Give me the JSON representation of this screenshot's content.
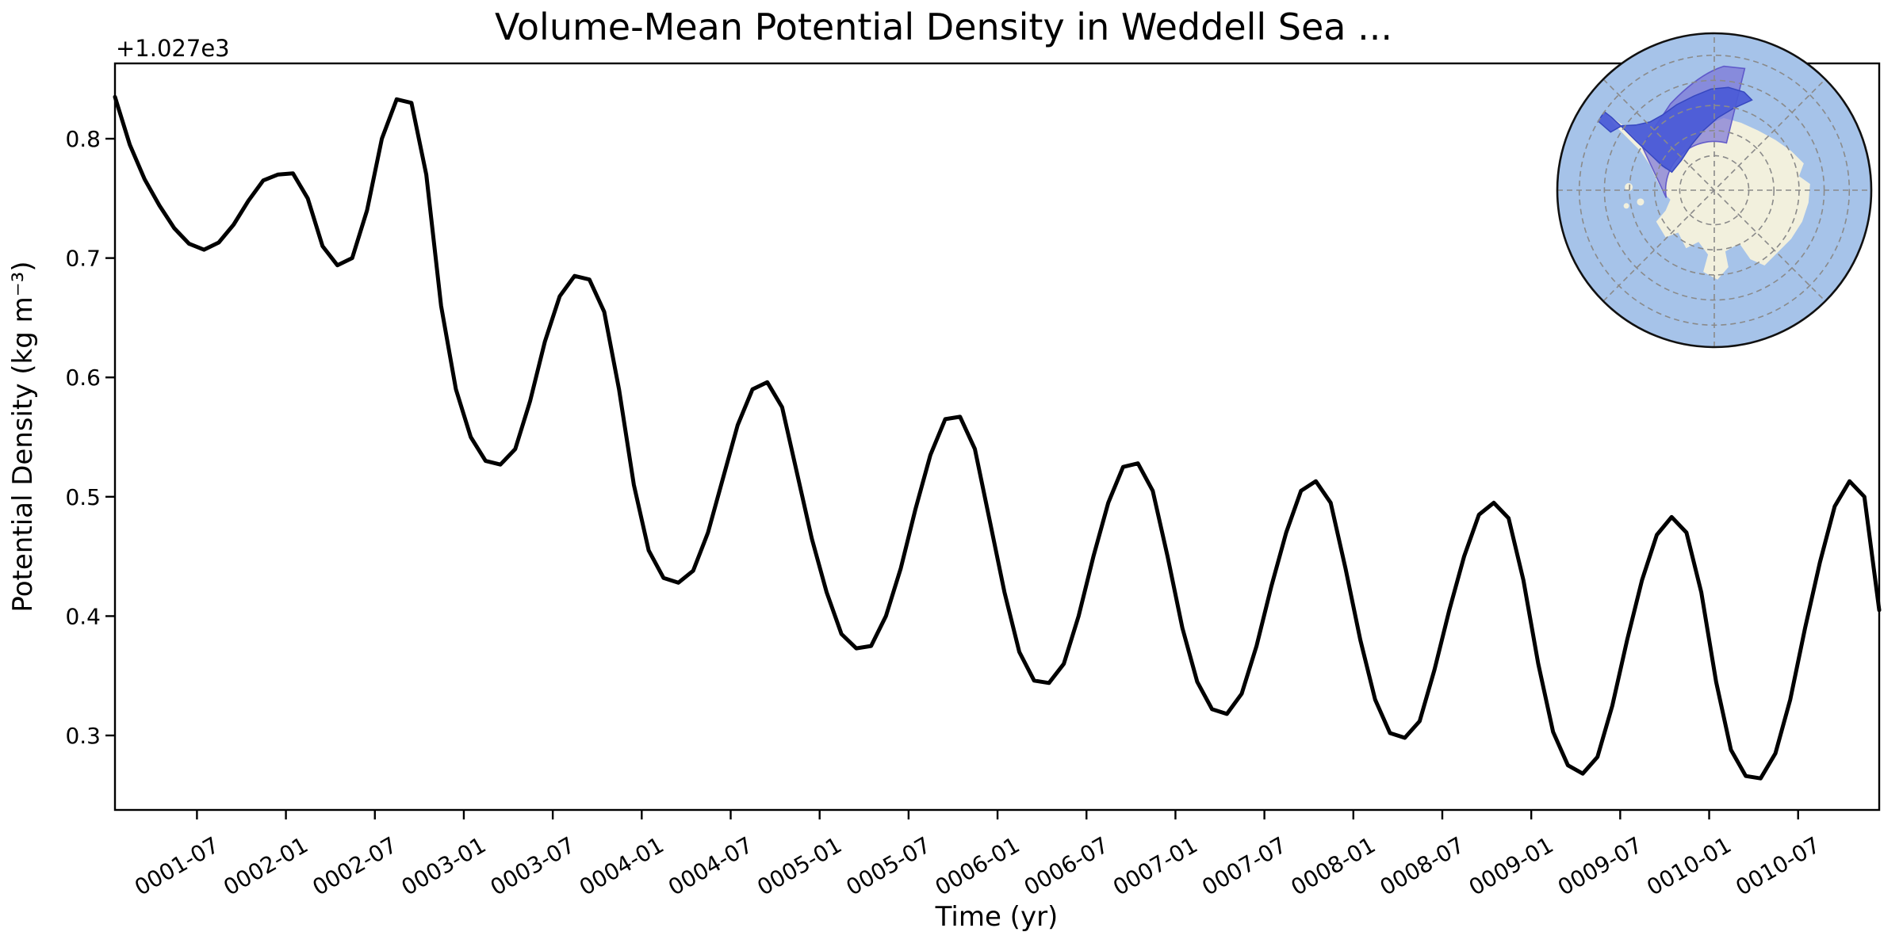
{
  "figure": {
    "title": "Volume-Mean Potential Density in Weddell Sea ...",
    "xlabel": "Time (yr)",
    "ylabel": "Potential Density (kg m⁻³)",
    "offset_text": "+1.027e3",
    "line_color": "#000000",
    "background_color": "#ffffff"
  },
  "chart_data": {
    "type": "line",
    "title": "Volume-Mean Potential Density in Weddell Sea ...",
    "xlabel": "Time (yr)",
    "ylabel": "Potential Density (kg m⁻³)",
    "y_base": 1027,
    "y_offset_label": "+1.027e3",
    "x_start": "0001-01",
    "x_end": "0010-12",
    "x_freq": "monthly",
    "n_points": 120,
    "ylim": [
      0.238,
      0.863
    ],
    "y_ticks": [
      0.3,
      0.4,
      0.5,
      0.6,
      0.7,
      0.8
    ],
    "y_tick_labels": [
      "0.3",
      "0.4",
      "0.5",
      "0.6",
      "0.7",
      "0.8"
    ],
    "x_tick_labels": [
      "0001-07",
      "0002-01",
      "0002-07",
      "0003-01",
      "0003-07",
      "0004-01",
      "0004-07",
      "0005-01",
      "0005-07",
      "0006-01",
      "0006-07",
      "0007-01",
      "0007-07",
      "0008-01",
      "0008-07",
      "0009-01",
      "0009-07",
      "0010-01",
      "0010-07"
    ],
    "x_tick_rotation_deg": 30,
    "grid": false,
    "legend": "none",
    "values": [
      0.835,
      0.795,
      0.766,
      0.744,
      0.725,
      0.712,
      0.707,
      0.713,
      0.728,
      0.748,
      0.765,
      0.77,
      0.771,
      0.75,
      0.71,
      0.694,
      0.7,
      0.74,
      0.8,
      0.833,
      0.83,
      0.77,
      0.66,
      0.59,
      0.55,
      0.53,
      0.527,
      0.54,
      0.58,
      0.63,
      0.668,
      0.685,
      0.682,
      0.655,
      0.59,
      0.51,
      0.455,
      0.432,
      0.428,
      0.438,
      0.47,
      0.515,
      0.56,
      0.59,
      0.596,
      0.575,
      0.52,
      0.465,
      0.42,
      0.385,
      0.373,
      0.375,
      0.4,
      0.44,
      0.49,
      0.535,
      0.565,
      0.567,
      0.54,
      0.48,
      0.42,
      0.37,
      0.346,
      0.344,
      0.36,
      0.4,
      0.45,
      0.495,
      0.525,
      0.528,
      0.505,
      0.45,
      0.39,
      0.345,
      0.322,
      0.318,
      0.335,
      0.375,
      0.425,
      0.47,
      0.505,
      0.513,
      0.495,
      0.44,
      0.38,
      0.33,
      0.302,
      0.298,
      0.312,
      0.355,
      0.405,
      0.45,
      0.485,
      0.495,
      0.482,
      0.43,
      0.36,
      0.303,
      0.275,
      0.268,
      0.282,
      0.325,
      0.38,
      0.43,
      0.468,
      0.483,
      0.47,
      0.42,
      0.345,
      0.288,
      0.266,
      0.264,
      0.285,
      0.33,
      0.39,
      0.445,
      0.492,
      0.513,
      0.5,
      0.405
    ]
  },
  "inset_map": {
    "name": "antarctica-polar-inset",
    "ocean_color": "#a6c3e9",
    "land_color": "#f2f0dd",
    "region_fill": "#7b74d6",
    "region_opacity": 0.7,
    "region_edge": "#5a52c8",
    "sea_highlight_color": "#4a5ad6",
    "sea_highlight_edge": "#3647c0",
    "graticule_color": "#8a8a8a",
    "outline_color": "#111111"
  }
}
